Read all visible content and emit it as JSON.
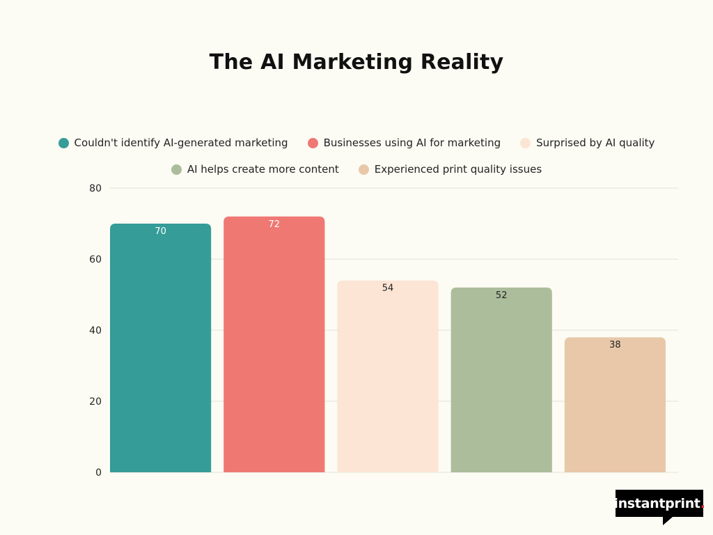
{
  "chart_data": {
    "type": "bar",
    "title": "The AI Marketing Reality",
    "categories": [
      "Couldn't identify AI-generated marketing",
      "Businesses using AI for marketing",
      "Surprised by AI quality",
      "AI helps create more content",
      "Experienced print quality issues"
    ],
    "values": [
      70,
      72,
      54,
      52,
      38
    ],
    "colors": [
      "#359c98",
      "#ef7873",
      "#fce5d5",
      "#abbd9b",
      "#e8c8a8"
    ],
    "label_colors": [
      "#ffffff",
      "#ffffff",
      "#222222",
      "#222222",
      "#222222"
    ],
    "ylim": [
      0,
      80
    ],
    "yticks": [
      0,
      20,
      40,
      60,
      80
    ],
    "grid": true,
    "legend_position": "top"
  },
  "brand": {
    "logo_text": "instantprint",
    "logo_dot": "."
  }
}
